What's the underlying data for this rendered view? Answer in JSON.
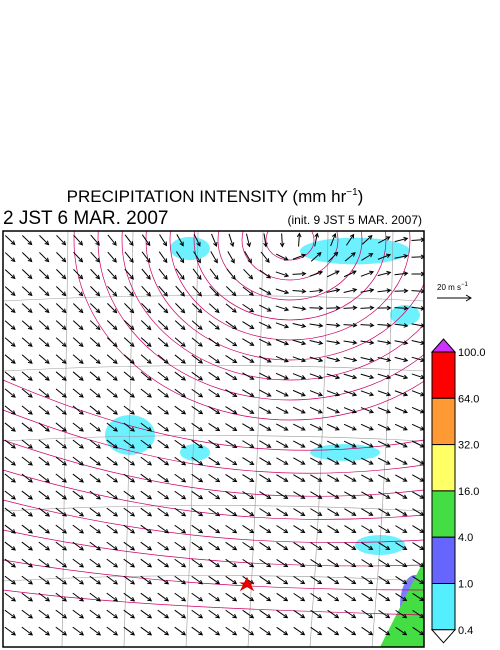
{
  "header": {
    "title_parts": [
      "PRECIPITATION INTENSITY (mm hr",
      "−1",
      ")"
    ],
    "valid_time": "2 JST 6 MAR. 2007",
    "init_time": "(init. 9 JST 5 MAR. 2007)"
  },
  "vector_key": {
    "label_parts": [
      "20 m s",
      "−1"
    ]
  },
  "legend": {
    "labels": [
      "100.0",
      "64.0",
      "32.0",
      "16.0",
      "4.0",
      "1.0",
      "0.4"
    ],
    "colors": [
      "#ff0000",
      "#ff9933",
      "#ffff66",
      "#44dd44",
      "#6666ff",
      "#55eeff"
    ],
    "over_color": "#cc33ff",
    "under_color": "#ffffff"
  }
}
